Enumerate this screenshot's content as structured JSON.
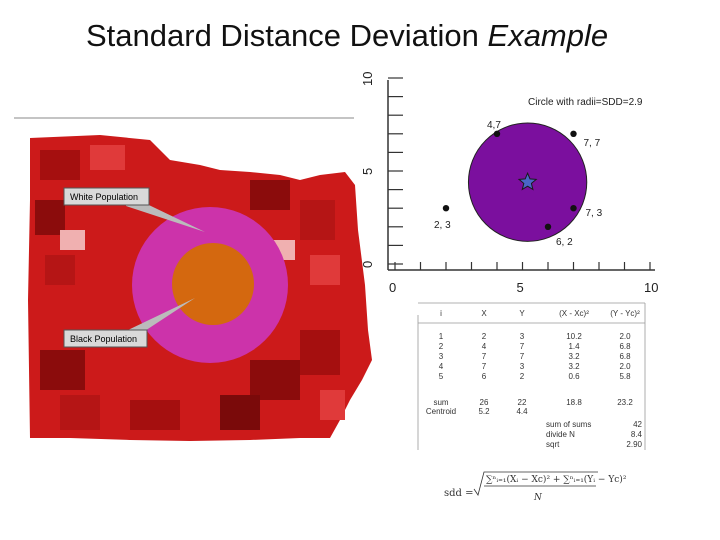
{
  "title": {
    "main": "Standard Distance Deviation",
    "italic": "Example"
  },
  "map": {
    "callouts": [
      {
        "label": "White Population"
      },
      {
        "label": "Black Population"
      }
    ],
    "colors": {
      "map_red": "#cc1a1a",
      "white_circle": "#cc33aa",
      "black_circle": "#d4680f"
    }
  },
  "chart_data": {
    "type": "scatter",
    "title": "Circle with radii=SDD=2.9",
    "xlim": [
      0,
      10
    ],
    "ylim": [
      0,
      10
    ],
    "x_ticks": [
      "0",
      "5",
      "10"
    ],
    "y_ticks": [
      "0",
      "5",
      "10"
    ],
    "points": [
      {
        "x": 2,
        "y": 3,
        "label": "2, 3"
      },
      {
        "x": 4,
        "y": 7,
        "label": "4,7"
      },
      {
        "x": 7,
        "y": 7,
        "label": "7, 7"
      },
      {
        "x": 7,
        "y": 3,
        "label": "7, 3"
      },
      {
        "x": 6,
        "y": 2,
        "label": "6, 2"
      }
    ],
    "centroid": {
      "x": 5.2,
      "y": 4.4
    },
    "circle_radius": 2.9,
    "colors": {
      "circle": "#7b0f9e",
      "centroid_star": "#4a66c8"
    }
  },
  "table": {
    "headers": [
      "i",
      "X",
      "Y",
      "(X - Xc)²",
      "(Y - Yc)²"
    ],
    "rows": [
      [
        "1",
        "2",
        "3",
        "10.2",
        "2.0"
      ],
      [
        "2",
        "4",
        "7",
        "1.4",
        "6.8"
      ],
      [
        "3",
        "7",
        "7",
        "3.2",
        "6.8"
      ],
      [
        "4",
        "7",
        "3",
        "3.2",
        "2.0"
      ],
      [
        "5",
        "6",
        "2",
        "0.6",
        "5.8"
      ]
    ],
    "sum_row": [
      "sum",
      "26",
      "22",
      "18.8",
      "23.2"
    ],
    "centroid_row": [
      "Centroid",
      "5.2",
      "4.4"
    ],
    "summary": [
      {
        "label": "sum of sums",
        "value": "42"
      },
      {
        "label": "divide N",
        "value": "8.4"
      },
      {
        "label": "sqrt",
        "value": "2.90"
      }
    ]
  },
  "formula": {
    "lhs": "sdd ="
  }
}
